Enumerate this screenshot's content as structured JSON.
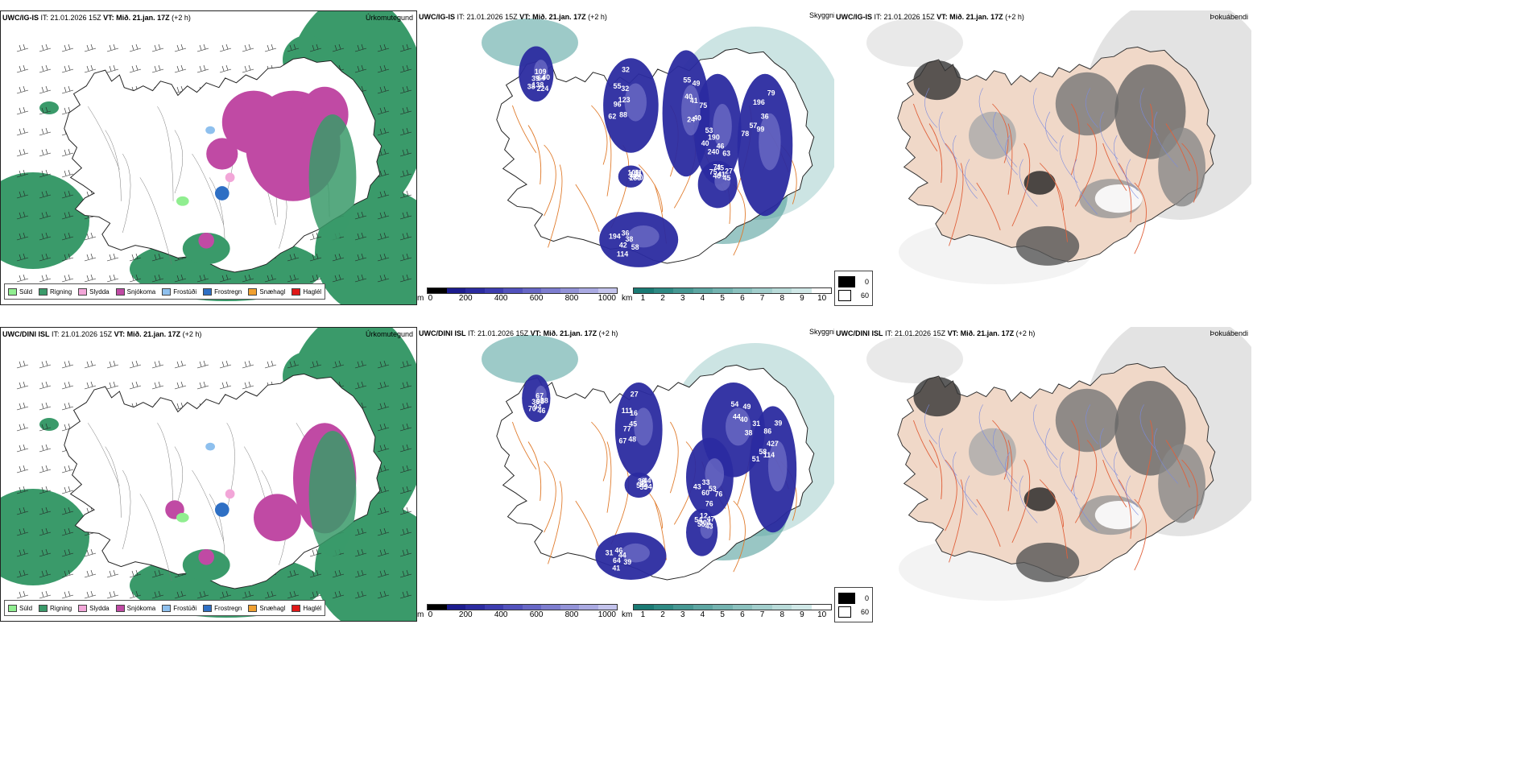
{
  "rows": [
    {
      "precip": {
        "model": "UWC/IG-IS",
        "it": "IT: 21.01.2026 15Z",
        "vt_label": "VT:",
        "vt": "Mið. 21.jan. 17Z",
        "lead": "(+2 h)",
        "right_title": "Úrkomutegund"
      },
      "cloud": {
        "model": "UWC/IG-IS",
        "it": "IT: 21.01.2026 15Z",
        "vt_label": "VT:",
        "vt": "Mið. 21.jan. 17Z",
        "lead": "(+2 h)",
        "right_title": "Skyggni",
        "labels": [
          "109",
          "88",
          "55",
          "63",
          "78",
          "101",
          "58",
          "75",
          "40",
          "62",
          "40",
          "46",
          "57",
          "11",
          "114",
          "40",
          "64",
          "96",
          "49",
          "71",
          "99",
          "131",
          "42",
          "45",
          "224",
          "123",
          "41",
          "240",
          "196",
          "40",
          "38",
          "41",
          "138",
          "55",
          "75",
          "190",
          "36",
          "180",
          "194",
          "27",
          "39",
          "32",
          "40",
          "40",
          "79",
          "30",
          "36",
          "45",
          "38",
          "32",
          "24",
          "53"
        ]
      },
      "fog": {
        "model": "UWC/IG-IS",
        "it": "IT: 21.01.2026 15Z",
        "vt_label": "VT:",
        "vt": "Mið. 21.jan. 17Z",
        "lead": "(+2 h)",
        "right_title": "Þokuábendi"
      }
    },
    {
      "precip": {
        "model": "UWC/DINI ISL",
        "it": "IT: 21.01.2026 15Z",
        "vt_label": "VT:",
        "vt": "Mið. 21.jan. 17Z",
        "lead": "(+2 h)",
        "right_title": "Úrkomutegund"
      },
      "cloud": {
        "model": "UWC/DINI ISL",
        "it": "IT: 21.01.2026 15Z",
        "vt_label": "VT:",
        "vt": "Mið. 21.jan. 17Z",
        "lead": "(+2 h)",
        "right_title": "Skyggni",
        "labels": [
          "67",
          "48",
          "54",
          "76",
          "51",
          "38",
          "39",
          "54",
          "38",
          "67",
          "44",
          "53",
          "58",
          "44",
          "41",
          "55",
          "98",
          "77",
          "49",
          "76",
          "114",
          "41",
          "64",
          "12",
          "46",
          "45",
          "40",
          "60",
          "86",
          "94",
          "44",
          "304",
          "94",
          "111",
          "31",
          "33",
          "427",
          "55",
          "31",
          "47",
          "36",
          "16",
          "38",
          "43",
          "39",
          "54",
          "46",
          "43",
          "70",
          "27"
        ]
      },
      "fog": {
        "model": "UWC/DINI ISL",
        "it": "IT: 21.01.2026 15Z",
        "vt_label": "VT:",
        "vt": "Mið. 21.jan. 17Z",
        "lead": "(+2 h)",
        "right_title": "Þokuábendi"
      }
    }
  ],
  "precip_legend": [
    {
      "label": "Súld",
      "color": "#90ee90"
    },
    {
      "label": "Rigning",
      "color": "#3a9a6a"
    },
    {
      "label": "Slydda",
      "color": "#f2a6d8"
    },
    {
      "label": "Snjókoma",
      "color": "#c04aa4"
    },
    {
      "label": "Frostúði",
      "color": "#8ec0ee"
    },
    {
      "label": "Frostregn",
      "color": "#2e6fc4"
    },
    {
      "label": "Snæhagl",
      "color": "#f0a030"
    },
    {
      "label": "Haglél",
      "color": "#e01818"
    }
  ],
  "ceiling_bar": {
    "unit": "m",
    "ticks": [
      "0",
      "200",
      "400",
      "600",
      "800",
      "1000"
    ],
    "colors": [
      "#000000",
      "#1c1c8e",
      "#2b2ba0",
      "#3d3db0",
      "#5252bd",
      "#6767c6",
      "#7d7dcf",
      "#9393d8",
      "#aaaae2",
      "#c3c3ec"
    ]
  },
  "vis_bar": {
    "unit": "km",
    "ticks": [
      "1",
      "2",
      "3",
      "4",
      "5",
      "6",
      "7",
      "8",
      "9",
      "10"
    ],
    "colors": [
      "#1a7a74",
      "#2e8a84",
      "#469893",
      "#5da6a2",
      "#74b3b0",
      "#8bc1be",
      "#a2cecc",
      "#b9dbd9",
      "#d0e8e7",
      "#ffffff"
    ]
  },
  "fog_legend": [
    {
      "label": "0",
      "color": "#000000"
    },
    {
      "label": "60",
      "color": "#ffffff"
    }
  ]
}
